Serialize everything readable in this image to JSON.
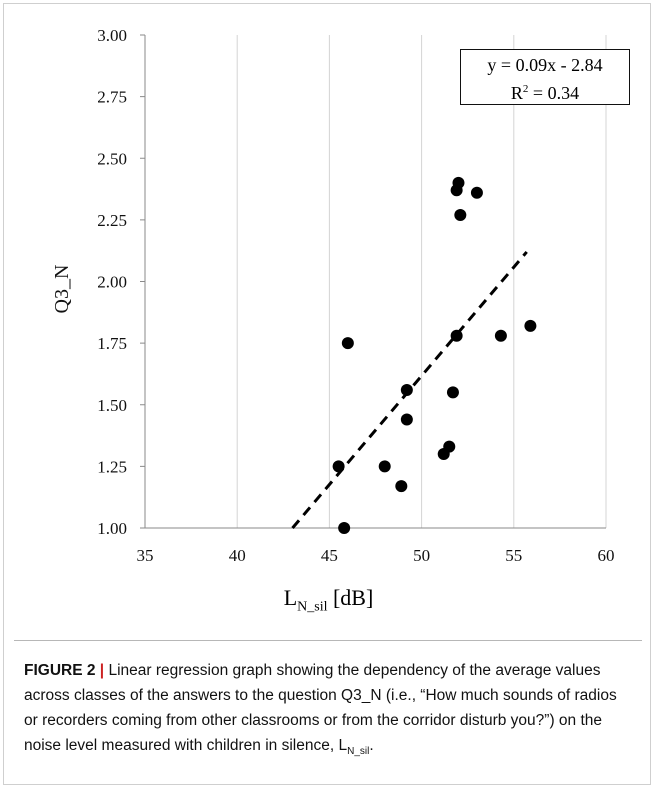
{
  "chart_data": {
    "type": "scatter",
    "x_axis": {
      "min": 35,
      "max": 60,
      "step": 5,
      "ticks": [
        "35",
        "40",
        "45",
        "50",
        "55",
        "60"
      ],
      "label_main": "L",
      "label_sub": "N_sil",
      "label_unit": "[dB]"
    },
    "y_axis": {
      "min": 1.0,
      "max": 3.0,
      "step": 0.25,
      "ticks": [
        "1.00",
        "1.25",
        "1.50",
        "1.75",
        "2.00",
        "2.25",
        "2.50",
        "2.75",
        "3.00"
      ],
      "label": "Q3_N"
    },
    "grid": "vertical",
    "points": [
      {
        "x": 45.8,
        "y": 1.0
      },
      {
        "x": 45.5,
        "y": 1.25
      },
      {
        "x": 46.0,
        "y": 1.75
      },
      {
        "x": 48.0,
        "y": 1.25
      },
      {
        "x": 48.9,
        "y": 1.17
      },
      {
        "x": 49.2,
        "y": 1.44
      },
      {
        "x": 49.2,
        "y": 1.56
      },
      {
        "x": 51.2,
        "y": 1.3
      },
      {
        "x": 51.5,
        "y": 1.33
      },
      {
        "x": 51.7,
        "y": 1.55
      },
      {
        "x": 51.9,
        "y": 1.78
      },
      {
        "x": 51.9,
        "y": 2.37
      },
      {
        "x": 52.0,
        "y": 2.4
      },
      {
        "x": 52.1,
        "y": 2.27
      },
      {
        "x": 53.0,
        "y": 2.36
      },
      {
        "x": 54.3,
        "y": 1.78
      },
      {
        "x": 55.9,
        "y": 1.82
      }
    ],
    "trendline": {
      "style": "dashed",
      "x_start": 43.0,
      "y_start": 1.0,
      "x_end": 55.7,
      "y_end": 2.12
    },
    "annotation": {
      "equation": "y = 0.09x - 2.84",
      "r2_label": "R",
      "r2_sup": "2",
      "r2_value": " = 0.34",
      "placement": "top-right"
    }
  },
  "caption": {
    "label": "FIGURE 2",
    "separator": "|",
    "text": " Linear regression graph showing the dependency of the average values across classes of the answers to the question Q3_N (i.e., “How much sounds of radios or recorders coming from other classrooms or from the corridor disturb you?”) on the noise level measured with children in silence, ",
    "symbol_main": "L",
    "symbol_sub": "N_sil",
    "end": "."
  }
}
